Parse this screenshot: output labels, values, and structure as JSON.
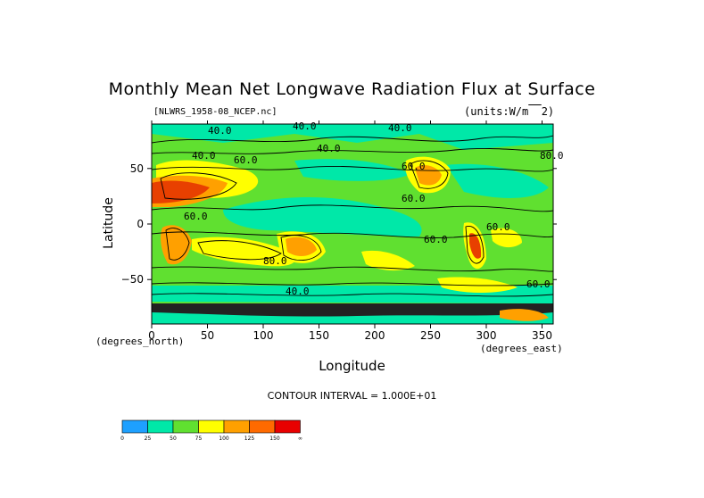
{
  "chart_data": {
    "type": "heatmap",
    "title": "Monthly Mean Net Longwave Radiation Flux at Surface",
    "source_file": "[NLWRS_1958-08_NCEP.nc]",
    "units": "(units:W/m^2)",
    "xlabel": "Longitude",
    "ylabel": "Latitude",
    "x_unit": "(degrees_east)",
    "y_unit": "(degrees_north)",
    "xlim": [
      0,
      360
    ],
    "ylim": [
      -90,
      90
    ],
    "x_ticks": [
      0,
      50,
      100,
      150,
      200,
      250,
      300,
      350
    ],
    "y_ticks": [
      50,
      0,
      -50
    ],
    "contour_interval": "CONTOUR INTERVAL = 1.000E+01",
    "contour_labels": [
      "40.0",
      "40.0",
      "40.0",
      "40.0",
      "60.0",
      "40.0",
      "60.0",
      "80.0",
      "60.0",
      "60.0",
      "60.0",
      "80.0",
      "60.0",
      "60.0",
      "40.0"
    ],
    "colorbar": {
      "ticks": [
        "0",
        "25",
        "50",
        "75",
        "100",
        "125",
        "150",
        "∞"
      ],
      "colors": [
        "#1ea0ff",
        "#00e8a8",
        "#60e030",
        "#ffff00",
        "#ffa000",
        "#ff6a00",
        "#e80000"
      ]
    }
  }
}
